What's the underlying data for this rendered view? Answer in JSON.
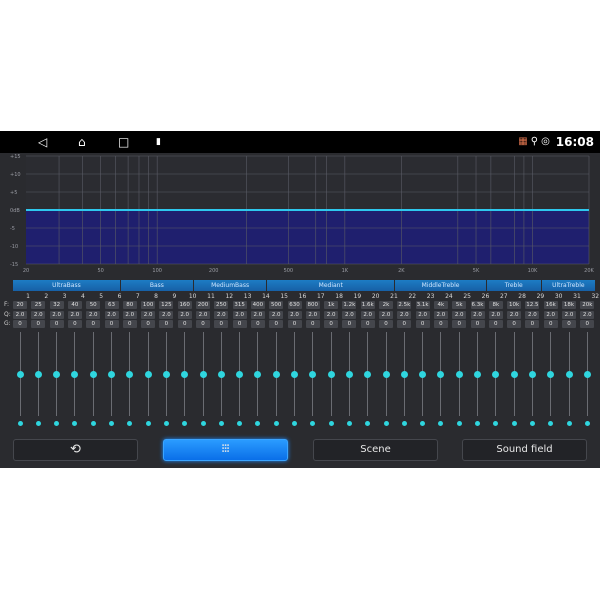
{
  "status_bar": {
    "nav": [
      {
        "icon": "back-icon",
        "glyph": "◁"
      },
      {
        "icon": "home-icon",
        "glyph": "⌂"
      },
      {
        "icon": "recents-icon",
        "glyph": "□"
      },
      {
        "icon": "usb-icon",
        "glyph": "▮"
      }
    ],
    "status_icons": [
      {
        "icon": "cast-icon",
        "glyph": "▦"
      },
      {
        "icon": "location-icon",
        "glyph": "⚲"
      },
      {
        "icon": "hotspot-icon",
        "glyph": "◎"
      }
    ],
    "time": "16:08"
  },
  "graph": {
    "y_labels": [
      "+15",
      "+10",
      "+5",
      "0dB",
      "-5",
      "-10",
      "-15"
    ],
    "x_labels": [
      "20",
      "50",
      "100",
      "200",
      "500",
      "1K",
      "2K",
      "5K",
      "10K",
      "20K"
    ],
    "x_values": [
      20,
      50,
      100,
      200,
      500,
      1000,
      2000,
      5000,
      10000,
      20000
    ],
    "curve_gain_db": 0,
    "colors": {
      "fill": "#1f1f6e",
      "line": "#2ec8ee",
      "grid": "#5a5c66"
    }
  },
  "bands": [
    {
      "label": "UltraBass",
      "from": 1,
      "to": 6
    },
    {
      "label": "Bass",
      "from": 7,
      "to": 10
    },
    {
      "label": "MediumBass",
      "from": 11,
      "to": 14
    },
    {
      "label": "Mediant",
      "from": 15,
      "to": 21
    },
    {
      "label": "MiddleTreble",
      "from": 22,
      "to": 26
    },
    {
      "label": "Treble",
      "from": 27,
      "to": 29
    },
    {
      "label": "UltraTreble",
      "from": 30,
      "to": 32
    }
  ],
  "row_labels": {
    "f": "F:",
    "q": "Q:",
    "g": "G:"
  },
  "channels": {
    "numbers": [
      "1",
      "2",
      "3",
      "4",
      "5",
      "6",
      "7",
      "8",
      "9",
      "10",
      "11",
      "12",
      "13",
      "14",
      "15",
      "16",
      "17",
      "18",
      "19",
      "20",
      "21",
      "22",
      "23",
      "24",
      "25",
      "26",
      "27",
      "28",
      "29",
      "30",
      "31",
      "32"
    ],
    "freq": [
      "20",
      "25",
      "32",
      "40",
      "50",
      "63",
      "80",
      "100",
      "125",
      "160",
      "200",
      "250",
      "315",
      "400",
      "500",
      "630",
      "800",
      "1k",
      "1.2k",
      "1.6k",
      "2k",
      "2.5k",
      "3.1k",
      "4k",
      "5k",
      "6.3k",
      "8k",
      "10k",
      "12.5",
      "16k",
      "18k",
      "20k"
    ],
    "q": [
      "2.0",
      "2.0",
      "2.0",
      "2.0",
      "2.0",
      "2.0",
      "2.0",
      "2.0",
      "2.0",
      "2.0",
      "2.0",
      "2.0",
      "2.0",
      "2.0",
      "2.0",
      "2.0",
      "2.0",
      "2.0",
      "2.0",
      "2.0",
      "2.0",
      "2.0",
      "2.0",
      "2.0",
      "2.0",
      "2.0",
      "2.0",
      "2.0",
      "2.0",
      "2.0",
      "2.0",
      "2.0"
    ],
    "gain": [
      "0",
      "0",
      "0",
      "0",
      "0",
      "0",
      "0",
      "0",
      "0",
      "0",
      "0",
      "0",
      "0",
      "0",
      "0",
      "0",
      "0",
      "0",
      "0",
      "0",
      "0",
      "0",
      "0",
      "0",
      "0",
      "0",
      "0",
      "0",
      "0",
      "0",
      "0",
      "0"
    ],
    "gain_range": [
      -15,
      15
    ]
  },
  "buttons": {
    "reset": {
      "icon": "reset-icon",
      "glyph": "⟲"
    },
    "eq": {
      "icon": "equalizer-icon",
      "glyph": "⫶⫶⫶"
    },
    "scene": "Scene",
    "sound_field": "Sound field"
  }
}
